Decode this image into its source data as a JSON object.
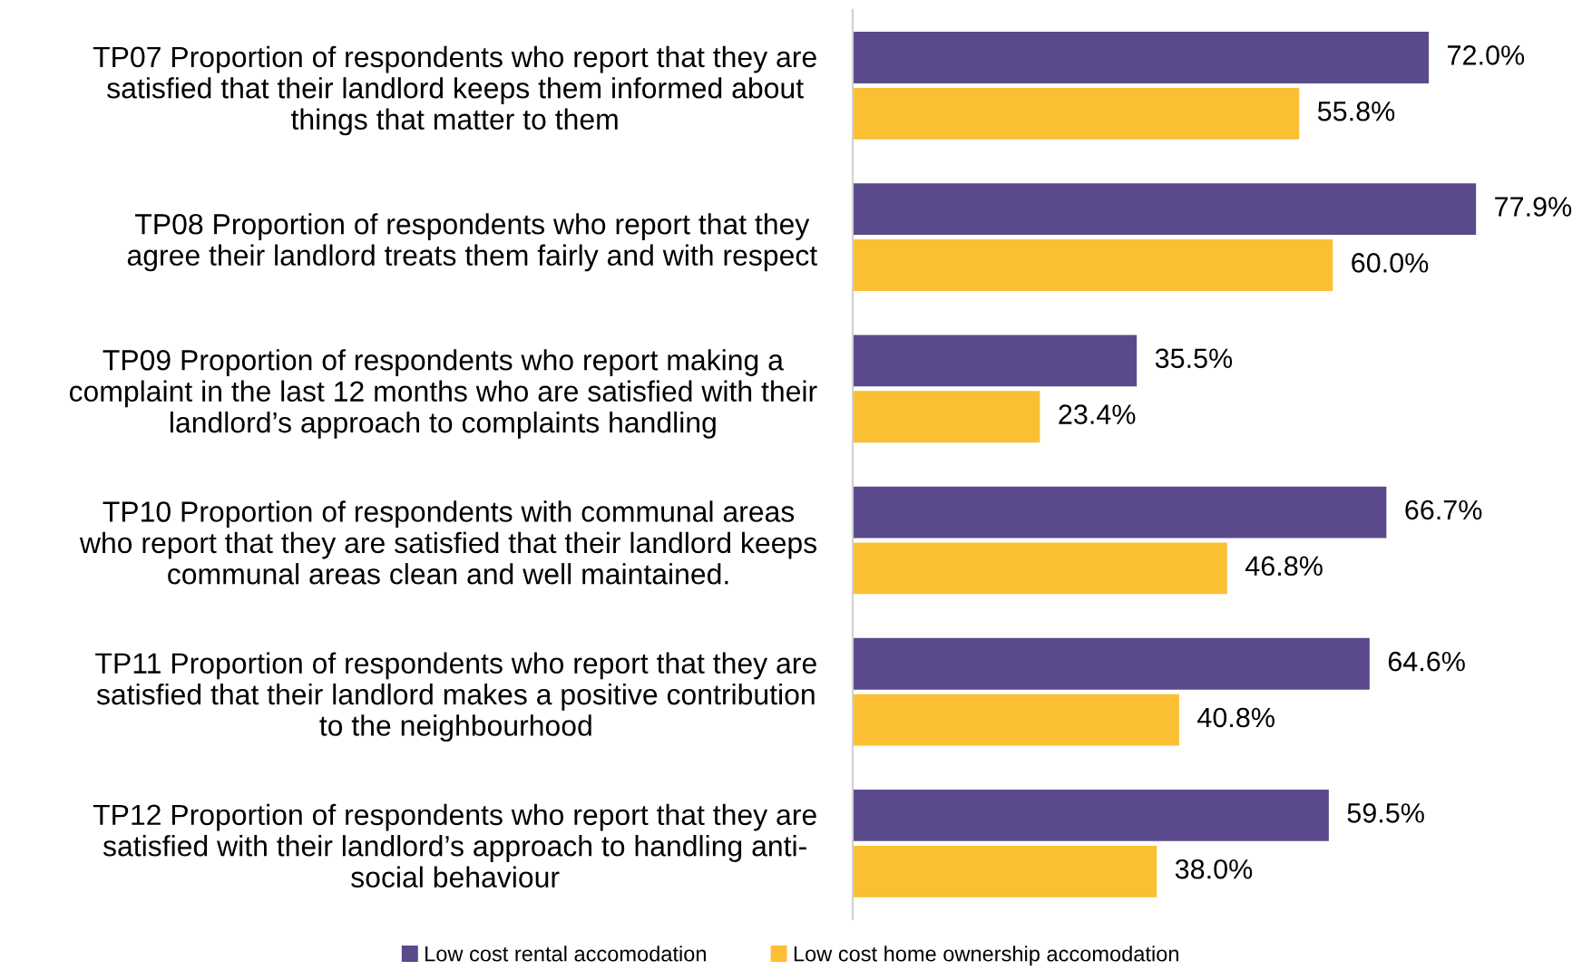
{
  "chart_data": {
    "type": "bar",
    "orientation": "horizontal",
    "legend": "bottom",
    "grid": false,
    "categories": [
      "TP07 Proportion of respondents who report that they are\nsatisfied that their landlord keeps them informed about\nthings that matter to them",
      "TP08 Proportion of respondents who report that they\nagree their landlord treats them fairly and with respect",
      "TP09 Proportion of respondents who report making a\ncomplaint in the last 12 months who are satisfied with their\nlandlord’s approach to complaints handling",
      "TP10 Proportion of respondents with communal areas\nwho report that they are satisfied that their landlord keeps\ncommunal areas clean and well maintained.",
      "TP11 Proportion of respondents who report that they are\nsatisfied that their landlord makes a positive contribution\nto the neighbourhood",
      "TP12 Proportion of respondents who report that they are\nsatisfied with their landlord’s approach to handling anti-\nsocial behaviour"
    ],
    "series": [
      {
        "name": "Low cost rental accomodation",
        "color": "#5b4a8b",
        "values": [
          72.0,
          77.9,
          35.5,
          66.7,
          64.6,
          59.5
        ],
        "value_labels": [
          "72.0%",
          "77.9%",
          "35.5%",
          "66.7%",
          "64.6%",
          "59.5%"
        ]
      },
      {
        "name": "Low cost home ownership accomodation",
        "color": "#fbbf33",
        "values": [
          55.8,
          60.0,
          23.4,
          46.8,
          40.8,
          38.0
        ],
        "value_labels": [
          "55.8%",
          "60.0%",
          "23.4%",
          "46.8%",
          "40.8%",
          "38.0%"
        ]
      }
    ]
  }
}
